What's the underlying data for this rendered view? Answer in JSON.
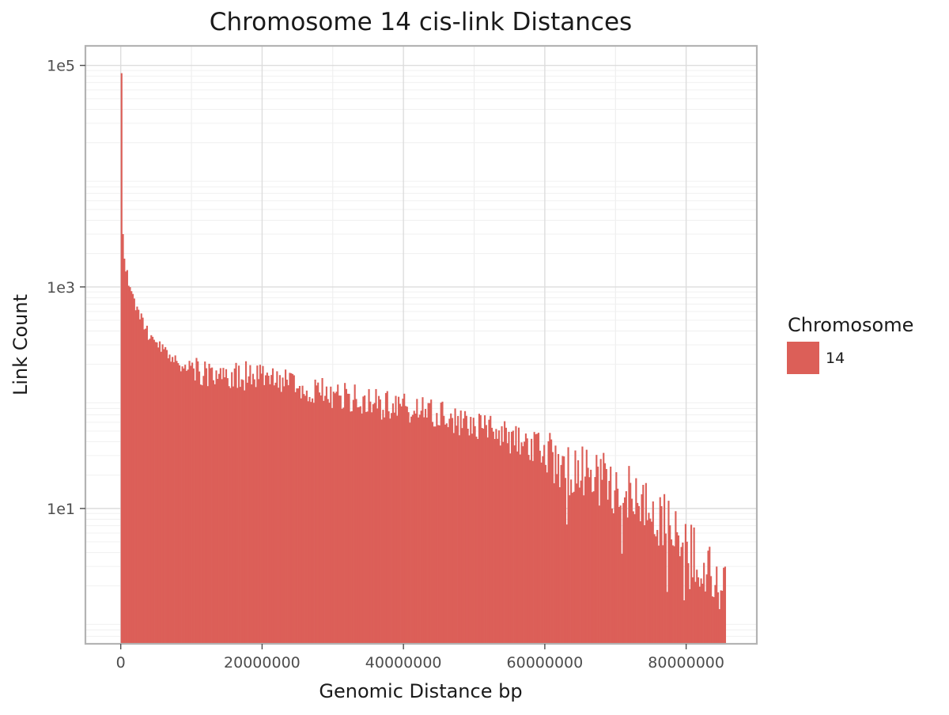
{
  "chart_data": {
    "type": "bar",
    "title": "Chromosome 14 cis-link Distances",
    "xlabel": "Genomic Distance bp",
    "ylabel": "Link Count",
    "x_scale": "linear",
    "y_scale": "log10",
    "xlim": [
      -5000000,
      90000000
    ],
    "ylim": [
      0.6,
      150000
    ],
    "grid": true,
    "x_ticks": [
      {
        "value": 0,
        "label": "0"
      },
      {
        "value": 20000000,
        "label": "20000000"
      },
      {
        "value": 40000000,
        "label": "40000000"
      },
      {
        "value": 60000000,
        "label": "60000000"
      },
      {
        "value": 80000000,
        "label": "80000000"
      }
    ],
    "y_ticks": [
      {
        "value": 10,
        "label": "1e1"
      },
      {
        "value": 1000,
        "label": "1e3"
      },
      {
        "value": 100000,
        "label": "1e5"
      }
    ],
    "bin_width": 200000,
    "bin_start": 0,
    "series": [
      {
        "name": "14",
        "color": "#dc5f58",
        "profile": {
          "x": [
            0,
            200000,
            400000,
            600000,
            1000000,
            1500000,
            2000000,
            3000000,
            4000000,
            5000000,
            6000000,
            7000000,
            8000000,
            10000000,
            12000000,
            15000000,
            20000000,
            25000000,
            30000000,
            35000000,
            40000000,
            45000000,
            50000000,
            55000000,
            60000000,
            65000000,
            70000000,
            75000000,
            78000000,
            80000000,
            82000000,
            84000000,
            85400000
          ],
          "values": [
            85000,
            3000,
            1800,
            1500,
            1050,
            850,
            700,
            480,
            360,
            300,
            270,
            230,
            200,
            185,
            170,
            160,
            150,
            125,
            105,
            92,
            80,
            68,
            56,
            43,
            34,
            24,
            16,
            10,
            6.5,
            4.5,
            3.2,
            2.2,
            1.7
          ]
        }
      }
    ],
    "legend": {
      "title": "Chromosome",
      "position": "right",
      "entries": [
        {
          "label": "14",
          "color": "#dc5f58"
        }
      ]
    }
  }
}
